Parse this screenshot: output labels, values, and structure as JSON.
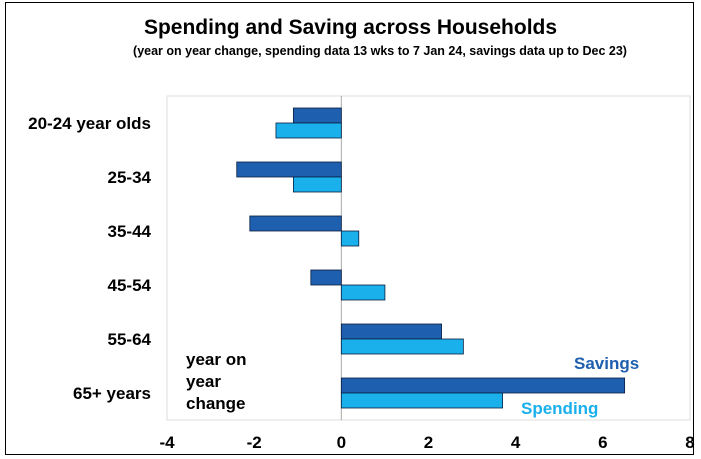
{
  "chart_data": {
    "type": "bar",
    "orientation": "horizontal",
    "title": "Spending and Saving across Households",
    "subtitle": "(year on year change, spending data 13 wks to 7 Jan 24, savings data up to Dec 23)",
    "categories": [
      "20-24 year olds",
      "25-34",
      "35-44",
      "45-54",
      "55-64",
      "65+ years"
    ],
    "series": [
      {
        "name": "Savings",
        "color": "#1f5fb0",
        "values": [
          -1.1,
          -2.4,
          -2.1,
          -0.7,
          2.3,
          6.5
        ]
      },
      {
        "name": "Spending",
        "color": "#1ab0ec",
        "values": [
          -1.5,
          -1.1,
          0.4,
          1.0,
          2.8,
          3.7
        ]
      }
    ],
    "xlim": [
      -4,
      8
    ],
    "xticks": [
      "-4",
      "-2",
      "0",
      "2",
      "4",
      "6",
      "8"
    ],
    "annotation": "year on year change",
    "grid": false,
    "legend_placement": "inline-bottom-right"
  }
}
